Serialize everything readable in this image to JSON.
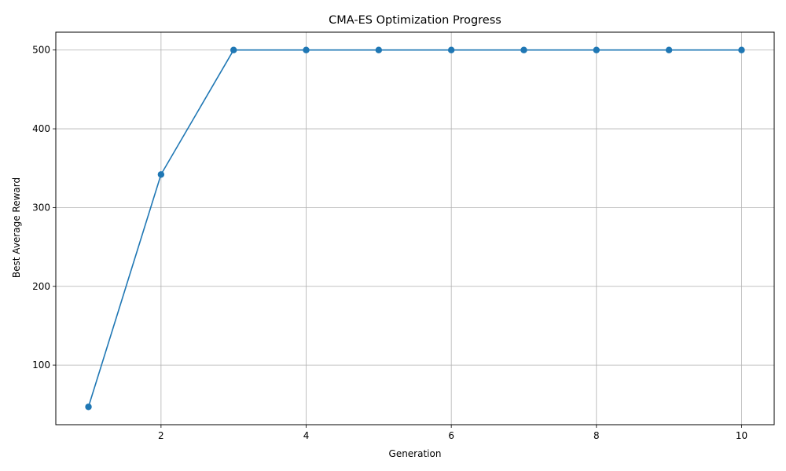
{
  "chart_data": {
    "type": "line",
    "title": "CMA-ES Optimization Progress",
    "xlabel": "Generation",
    "ylabel": "Best Average Reward",
    "x": [
      1,
      2,
      3,
      4,
      5,
      6,
      7,
      8,
      9,
      10
    ],
    "series": [
      {
        "values": [
          47,
          342,
          500,
          500,
          500,
          500,
          500,
          500,
          500,
          500
        ],
        "color": "#1f77b4",
        "marker": "circle"
      }
    ],
    "xlim": [
      0.55,
      10.45
    ],
    "ylim": [
      24.35,
      522.65
    ],
    "xticks": [
      2,
      4,
      6,
      8,
      10
    ],
    "yticks": [
      100,
      200,
      300,
      400,
      500
    ],
    "grid": true
  }
}
